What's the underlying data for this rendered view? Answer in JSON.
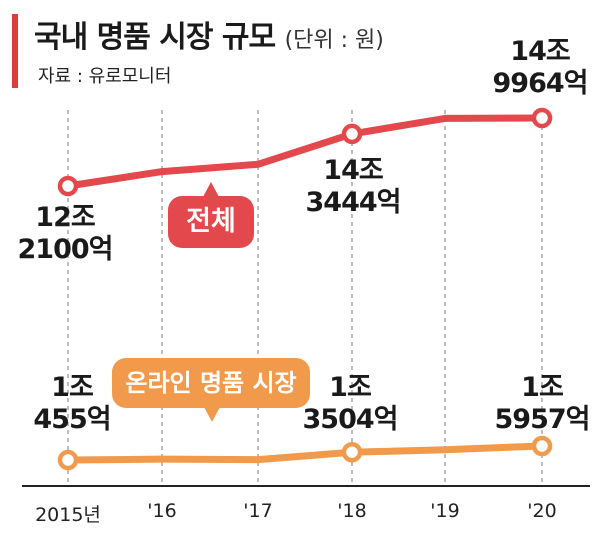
{
  "title": "국내 명품 시장 규모",
  "unit": "(단위 : 원)",
  "source": "자료 : 유로모니터",
  "colors": {
    "total": "#e2484c",
    "online": "#f19a4c",
    "accent": "#e03a3e"
  },
  "chart_data": {
    "type": "line",
    "categories": [
      "2015년",
      "'16",
      "'17",
      "'18",
      "'19",
      "'20"
    ],
    "series": [
      {
        "name": "전체",
        "values": [
          12.21,
          12.8,
          13.1,
          14.3444,
          14.98,
          14.9964
        ]
      },
      {
        "name": "온라인 명품 시장",
        "values": [
          1.0455,
          1.08,
          1.06,
          1.3504,
          1.45,
          1.5957
        ]
      }
    ],
    "data_labels": {
      "total": [
        {
          "l1": "12조",
          "l2": "2100억"
        },
        {
          "l1": "14조",
          "l2": "3444억"
        },
        {
          "l1": "14조",
          "l2": "9964억"
        }
      ],
      "online": [
        {
          "l1": "1조",
          "l2": "455억"
        },
        {
          "l1": "1조",
          "l2": "3504억"
        },
        {
          "l1": "1조",
          "l2": "5957억"
        }
      ]
    },
    "callouts": [
      "전체",
      "온라인 명품 시장"
    ],
    "grid": "vertical-dashed"
  }
}
